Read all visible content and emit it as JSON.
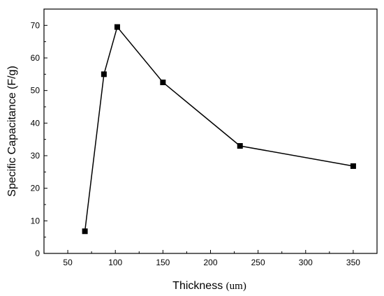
{
  "chart_data": {
    "type": "line",
    "title": "",
    "xlabel": "Thickness",
    "xlabel_unit": "(um)",
    "ylabel": "Specific Capacitance (F/g)",
    "xlim": [
      25,
      375
    ],
    "ylim": [
      0,
      75
    ],
    "x_ticks": [
      "50",
      "100",
      "150",
      "200",
      "250",
      "300",
      "350"
    ],
    "y_ticks": [
      "0",
      "10",
      "20",
      "30",
      "40",
      "50",
      "60",
      "70"
    ],
    "marker": "square",
    "grid": false,
    "legend": "none",
    "series": [
      {
        "x": [
          68,
          88,
          102,
          150,
          231,
          350
        ],
        "y": [
          6.8,
          55.0,
          69.5,
          52.5,
          33.0,
          26.8
        ],
        "color": "#000000"
      }
    ]
  }
}
